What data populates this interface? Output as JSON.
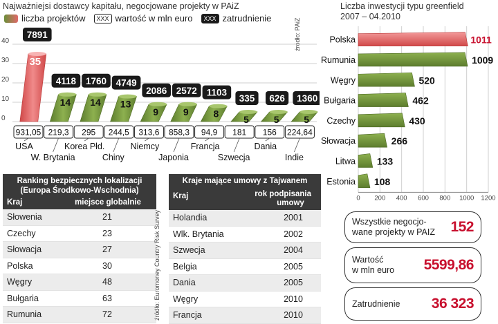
{
  "left_chart": {
    "title": "Najważniejsi dostawcy kapitału, negocjowane projekty w PAiZ",
    "legend": [
      {
        "label": "liczba projektów",
        "kind": "swatch"
      },
      {
        "label": "wartość w mln euro",
        "kind": "box",
        "box_text": "XXX"
      },
      {
        "label": "zatrudnienie",
        "kind": "box-dark",
        "box_text": "XXX"
      }
    ],
    "source": "źródło: PAiZ"
  },
  "right_chart": {
    "title_line1": "Liczba inwestycji typu greenfield",
    "title_line2": "2007 – 04.2010"
  },
  "chart_data": [
    {
      "type": "bar",
      "title": "Najważniejsi dostawcy kapitału, negocjowane projekty w PAiZ",
      "categories": [
        "USA",
        "W. Brytania",
        "Korea Płd.",
        "Chiny",
        "Niemcy",
        "Japonia",
        "Francja",
        "Szwecja",
        "Dania",
        "Indie"
      ],
      "series": [
        {
          "name": "liczba projektów",
          "values": [
            35,
            14,
            14,
            13,
            9,
            9,
            8,
            5,
            5,
            5
          ]
        },
        {
          "name": "wartość w mln euro",
          "values": [
            "931,05",
            "219,3",
            "295",
            "244,5",
            "313,6",
            "858,3",
            "94,9",
            "181",
            "156",
            "224,64"
          ]
        },
        {
          "name": "zatrudnienie",
          "values": [
            "7891",
            "4118",
            "1760",
            "4749",
            "2086",
            "2572",
            "1103",
            "335",
            "626",
            "1360"
          ]
        }
      ],
      "highlight": "#e05a5a",
      "bar_color": "#6b8f3a",
      "ylim": [
        0,
        40
      ],
      "yticks": [
        0,
        10,
        20,
        30,
        40
      ],
      "grid": true
    },
    {
      "type": "bar",
      "orientation": "horizontal",
      "title": "Liczba inwestycji typu greenfield 2007 – 04.2010",
      "categories": [
        "Polska",
        "Rumunia",
        "Węgry",
        "Bułgaria",
        "Czechy",
        "Słowacja",
        "Litwa",
        "Estonia"
      ],
      "values": [
        1011,
        1009,
        520,
        462,
        430,
        266,
        133,
        108
      ],
      "xlim": [
        0,
        1200
      ],
      "xticks": [
        0,
        200,
        400,
        600,
        800,
        1000,
        1200
      ],
      "highlight": "#e05a5a",
      "bar_color": "#6b8f3a",
      "grid": true
    }
  ],
  "ranking_table": {
    "header_line1": "Ranking bezpiecznych lokalizacji",
    "header_line2": "(Europa Środkowo-Wschodnia)",
    "col_country": "Kraj",
    "col_rank": "miejsce globalnie",
    "rows": [
      {
        "country": "Słowenia",
        "rank": "21"
      },
      {
        "country": "Czechy",
        "rank": "23"
      },
      {
        "country": "Słowacja",
        "rank": "27"
      },
      {
        "country": "Polska",
        "rank": "30"
      },
      {
        "country": "Węgry",
        "rank": "48"
      },
      {
        "country": "Bułgaria",
        "rank": "63"
      },
      {
        "country": "Rumunia",
        "rank": "72"
      }
    ],
    "source": "źródło: Euromoney Country Risk Survey"
  },
  "taiwan_table": {
    "header": "Kraje mające umowy z Tajwanem",
    "col_country": "Kraj",
    "col_year_l1": "rok podpisania",
    "col_year_l2": "umowy",
    "rows": [
      {
        "country": "Holandia",
        "year": "2001"
      },
      {
        "country": "Wlk. Brytania",
        "year": "2002"
      },
      {
        "country": "Szwecja",
        "year": "2004"
      },
      {
        "country": "Belgia",
        "year": "2005"
      },
      {
        "country": "Dania",
        "year": "2005"
      },
      {
        "country": "Węgry",
        "year": "2010"
      },
      {
        "country": "Francja",
        "year": "2010"
      }
    ]
  },
  "summary": [
    {
      "label_l1": "Wszystkie negocjo-",
      "label_l2": "wane projekty w PAIZ",
      "value": "152"
    },
    {
      "label_l1": "Wartość",
      "label_l2": "w mln euro",
      "value": "5599,86"
    },
    {
      "label_l1": "Zatrudnienie",
      "label_l2": "",
      "value": "36 323"
    }
  ]
}
